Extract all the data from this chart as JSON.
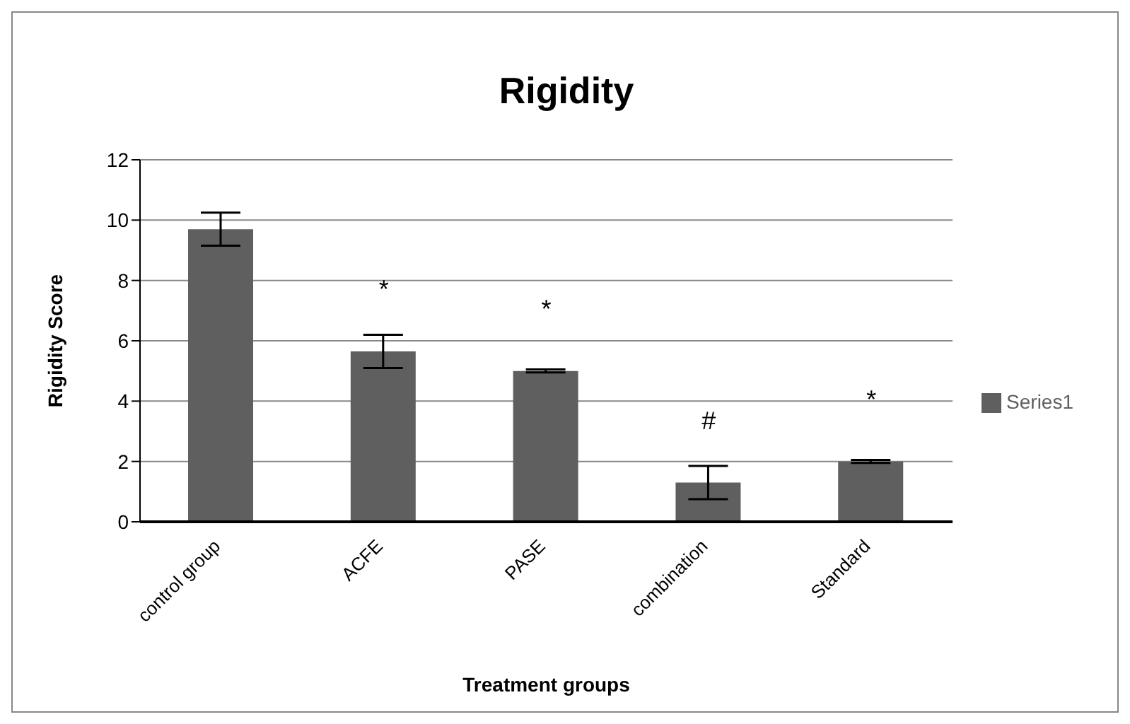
{
  "chart_data": {
    "type": "bar",
    "title": "Rigidity",
    "xlabel": "Treatment groups",
    "ylabel": "Rigidity Score",
    "categories": [
      "control group",
      "ACFE",
      "PASE",
      "combination",
      "Standard"
    ],
    "series": [
      {
        "name": "Series1",
        "color": "#5f5f5f",
        "values": [
          9.7,
          5.65,
          5.0,
          1.3,
          2.0
        ],
        "errors": [
          0.55,
          0.55,
          0.05,
          0.55,
          0.05
        ]
      }
    ],
    "ylim": [
      0,
      12
    ],
    "yticks": [
      0,
      2,
      4,
      6,
      8,
      10,
      12
    ],
    "grid": "y",
    "legend": "right",
    "annotations": [
      {
        "text": "*",
        "x": "ACFE",
        "y": 5.65
      },
      {
        "text": "*",
        "x": "PASE",
        "y": 5.0
      },
      {
        "text": "#",
        "x": "combination",
        "y": 1.3
      },
      {
        "text": "*",
        "x": "Standard",
        "y": 2.0
      }
    ]
  }
}
